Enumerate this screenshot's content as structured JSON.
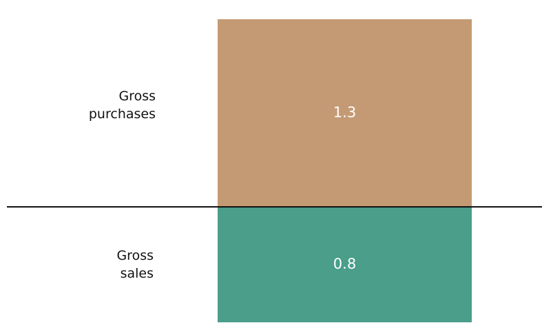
{
  "chart_data": {
    "type": "bar",
    "categories": [
      "Gross purchases",
      "Gross sales"
    ],
    "values": [
      1.3,
      0.8
    ],
    "colors": [
      "#c49a74",
      "#4a9e8a"
    ]
  }
}
